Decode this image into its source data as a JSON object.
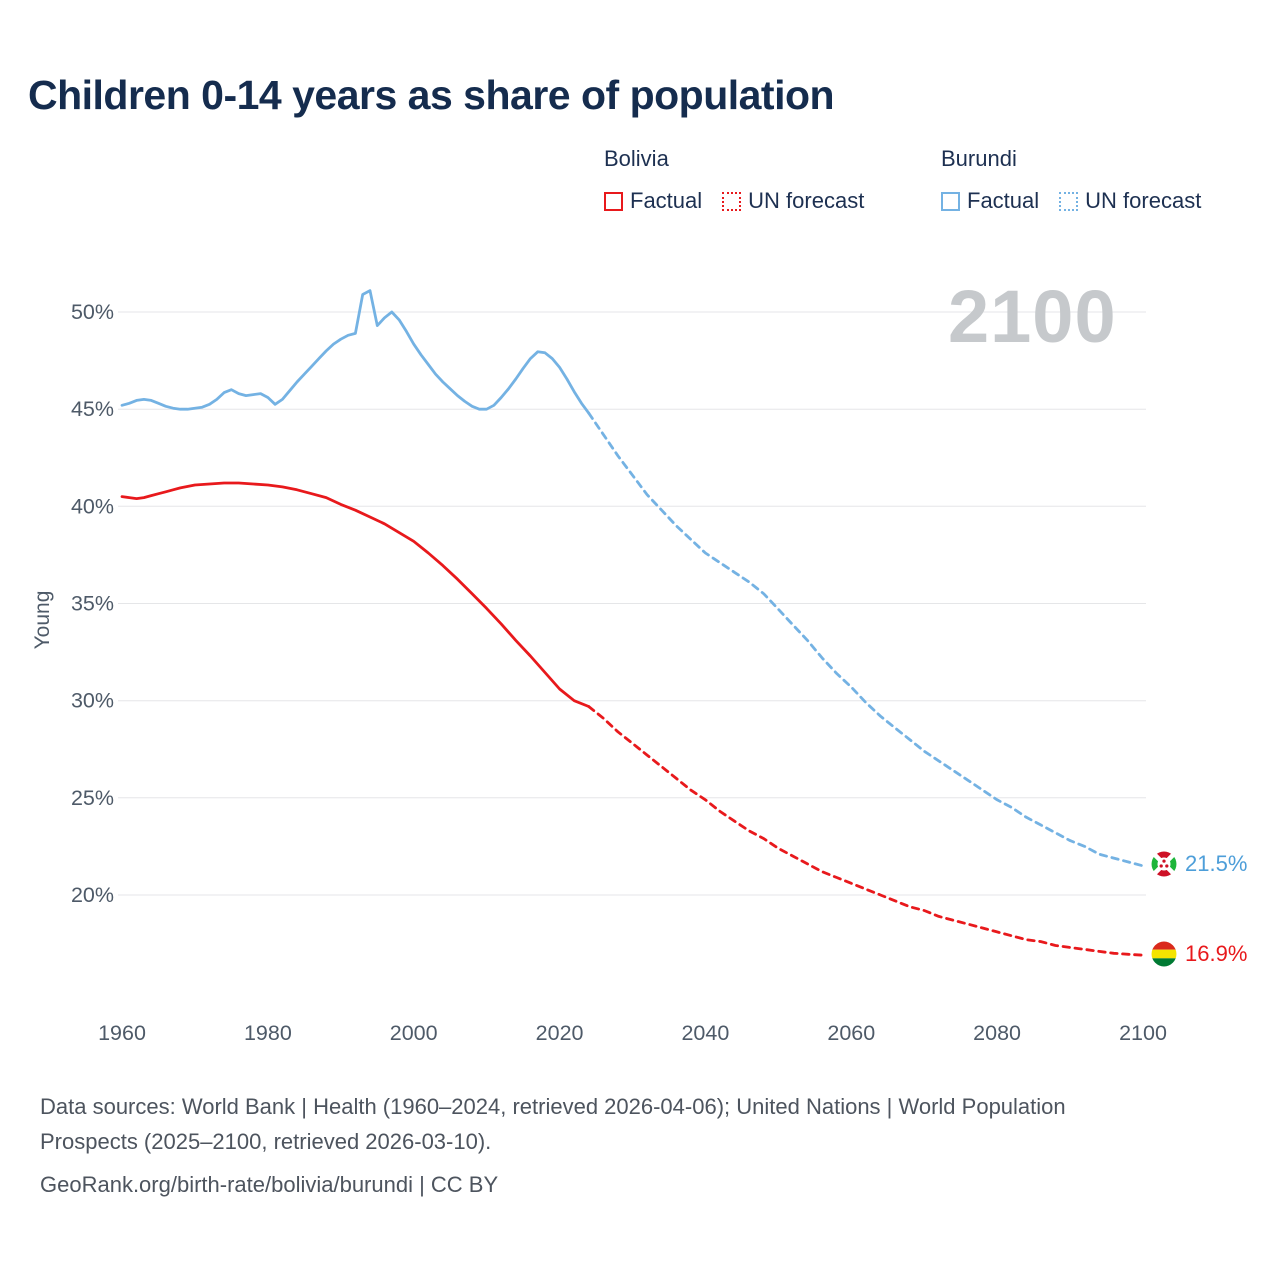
{
  "header": {
    "title": "Children 0-14 years as share of population"
  },
  "legend": {
    "groups": [
      {
        "name": "Bolivia",
        "color": "#e8191c",
        "items": [
          {
            "label": "Factual",
            "style": "solid"
          },
          {
            "label": "UN forecast",
            "style": "dashed"
          }
        ]
      },
      {
        "name": "Burundi",
        "color": "#74b2e3",
        "items": [
          {
            "label": "Factual",
            "style": "solid"
          },
          {
            "label": "UN forecast",
            "style": "dashed"
          }
        ]
      }
    ]
  },
  "chart_data": {
    "type": "line",
    "title": "Children 0-14 years as share of population",
    "ylabel": "Young",
    "xlabel": "",
    "watermark": "2100",
    "grid": "horizontal",
    "legend_position": "top-right",
    "xlim": [
      1960,
      2100
    ],
    "ylim": [
      16,
      52
    ],
    "x_ticks": [
      1960,
      1980,
      2000,
      2020,
      2040,
      2060,
      2080,
      2100
    ],
    "y_ticks": [
      20,
      25,
      30,
      35,
      40,
      45,
      50
    ],
    "y_tick_suffix": "%",
    "series": [
      {
        "id": "bolivia-factual",
        "name": "Bolivia Factual",
        "color": "#e8191c",
        "style": "solid",
        "points": [
          [
            1960,
            40.5
          ],
          [
            1961,
            40.45
          ],
          [
            1962,
            40.4
          ],
          [
            1963,
            40.45
          ],
          [
            1964,
            40.55
          ],
          [
            1965,
            40.65
          ],
          [
            1966,
            40.75
          ],
          [
            1967,
            40.85
          ],
          [
            1968,
            40.95
          ],
          [
            1970,
            41.1
          ],
          [
            1972,
            41.15
          ],
          [
            1974,
            41.2
          ],
          [
            1976,
            41.2
          ],
          [
            1978,
            41.15
          ],
          [
            1980,
            41.1
          ],
          [
            1982,
            41.0
          ],
          [
            1984,
            40.85
          ],
          [
            1986,
            40.65
          ],
          [
            1988,
            40.45
          ],
          [
            1990,
            40.1
          ],
          [
            1992,
            39.8
          ],
          [
            1994,
            39.45
          ],
          [
            1996,
            39.1
          ],
          [
            1998,
            38.65
          ],
          [
            2000,
            38.2
          ],
          [
            2002,
            37.6
          ],
          [
            2004,
            36.95
          ],
          [
            2006,
            36.25
          ],
          [
            2008,
            35.5
          ],
          [
            2010,
            34.75
          ],
          [
            2012,
            33.95
          ],
          [
            2014,
            33.1
          ],
          [
            2016,
            32.3
          ],
          [
            2018,
            31.45
          ],
          [
            2020,
            30.6
          ],
          [
            2022,
            30.0
          ],
          [
            2024,
            29.7
          ]
        ]
      },
      {
        "id": "bolivia-forecast",
        "name": "Bolivia UN forecast",
        "color": "#e8191c",
        "style": "dashed",
        "points": [
          [
            2024,
            29.7
          ],
          [
            2026,
            29.1
          ],
          [
            2028,
            28.4
          ],
          [
            2030,
            27.8
          ],
          [
            2032,
            27.2
          ],
          [
            2034,
            26.6
          ],
          [
            2036,
            26.0
          ],
          [
            2038,
            25.4
          ],
          [
            2040,
            24.9
          ],
          [
            2042,
            24.3
          ],
          [
            2044,
            23.8
          ],
          [
            2046,
            23.3
          ],
          [
            2048,
            22.9
          ],
          [
            2050,
            22.4
          ],
          [
            2052,
            22.0
          ],
          [
            2054,
            21.6
          ],
          [
            2056,
            21.2
          ],
          [
            2058,
            20.9
          ],
          [
            2060,
            20.6
          ],
          [
            2062,
            20.3
          ],
          [
            2064,
            20.0
          ],
          [
            2066,
            19.7
          ],
          [
            2068,
            19.4
          ],
          [
            2070,
            19.2
          ],
          [
            2072,
            18.9
          ],
          [
            2074,
            18.7
          ],
          [
            2076,
            18.5
          ],
          [
            2078,
            18.3
          ],
          [
            2080,
            18.1
          ],
          [
            2082,
            17.9
          ],
          [
            2084,
            17.7
          ],
          [
            2086,
            17.6
          ],
          [
            2088,
            17.4
          ],
          [
            2090,
            17.3
          ],
          [
            2092,
            17.2
          ],
          [
            2094,
            17.1
          ],
          [
            2096,
            17.0
          ],
          [
            2098,
            16.95
          ],
          [
            2100,
            16.9
          ]
        ]
      },
      {
        "id": "burundi-factual",
        "name": "Burundi Factual",
        "color": "#74b2e3",
        "style": "solid",
        "points": [
          [
            1960,
            45.2
          ],
          [
            1961,
            45.3
          ],
          [
            1962,
            45.45
          ],
          [
            1963,
            45.5
          ],
          [
            1964,
            45.45
          ],
          [
            1965,
            45.3
          ],
          [
            1966,
            45.15
          ],
          [
            1967,
            45.05
          ],
          [
            1968,
            45.0
          ],
          [
            1969,
            45.0
          ],
          [
            1970,
            45.05
          ],
          [
            1971,
            45.1
          ],
          [
            1972,
            45.25
          ],
          [
            1973,
            45.5
          ],
          [
            1974,
            45.85
          ],
          [
            1975,
            46.0
          ],
          [
            1976,
            45.8
          ],
          [
            1977,
            45.7
          ],
          [
            1978,
            45.75
          ],
          [
            1979,
            45.8
          ],
          [
            1980,
            45.6
          ],
          [
            1981,
            45.25
          ],
          [
            1982,
            45.5
          ],
          [
            1983,
            45.95
          ],
          [
            1984,
            46.4
          ],
          [
            1985,
            46.8
          ],
          [
            1986,
            47.2
          ],
          [
            1987,
            47.6
          ],
          [
            1988,
            48.0
          ],
          [
            1989,
            48.35
          ],
          [
            1990,
            48.6
          ],
          [
            1991,
            48.8
          ],
          [
            1992,
            48.9
          ],
          [
            1993,
            50.9
          ],
          [
            1994,
            51.1
          ],
          [
            1995,
            49.3
          ],
          [
            1996,
            49.7
          ],
          [
            1997,
            50.0
          ],
          [
            1998,
            49.6
          ],
          [
            1999,
            49.0
          ],
          [
            2000,
            48.35
          ],
          [
            2001,
            47.8
          ],
          [
            2002,
            47.3
          ],
          [
            2003,
            46.8
          ],
          [
            2004,
            46.4
          ],
          [
            2005,
            46.05
          ],
          [
            2006,
            45.7
          ],
          [
            2007,
            45.4
          ],
          [
            2008,
            45.15
          ],
          [
            2009,
            45.0
          ],
          [
            2010,
            45.0
          ],
          [
            2011,
            45.2
          ],
          [
            2012,
            45.6
          ],
          [
            2013,
            46.05
          ],
          [
            2014,
            46.55
          ],
          [
            2015,
            47.1
          ],
          [
            2016,
            47.6
          ],
          [
            2017,
            47.95
          ],
          [
            2018,
            47.9
          ],
          [
            2019,
            47.6
          ],
          [
            2020,
            47.15
          ],
          [
            2021,
            46.55
          ],
          [
            2022,
            45.9
          ],
          [
            2023,
            45.3
          ],
          [
            2024,
            44.8
          ]
        ]
      },
      {
        "id": "burundi-forecast",
        "name": "Burundi UN forecast",
        "color": "#74b2e3",
        "style": "dashed",
        "points": [
          [
            2024,
            44.8
          ],
          [
            2026,
            43.7
          ],
          [
            2028,
            42.6
          ],
          [
            2030,
            41.6
          ],
          [
            2032,
            40.6
          ],
          [
            2034,
            39.8
          ],
          [
            2036,
            39.0
          ],
          [
            2038,
            38.3
          ],
          [
            2040,
            37.6
          ],
          [
            2042,
            37.1
          ],
          [
            2044,
            36.6
          ],
          [
            2046,
            36.1
          ],
          [
            2048,
            35.5
          ],
          [
            2050,
            34.7
          ],
          [
            2052,
            33.9
          ],
          [
            2054,
            33.1
          ],
          [
            2056,
            32.2
          ],
          [
            2058,
            31.4
          ],
          [
            2060,
            30.7
          ],
          [
            2062,
            29.9
          ],
          [
            2064,
            29.2
          ],
          [
            2066,
            28.6
          ],
          [
            2068,
            28.0
          ],
          [
            2070,
            27.4
          ],
          [
            2072,
            26.9
          ],
          [
            2074,
            26.4
          ],
          [
            2076,
            25.9
          ],
          [
            2078,
            25.4
          ],
          [
            2080,
            24.9
          ],
          [
            2082,
            24.5
          ],
          [
            2084,
            24.0
          ],
          [
            2086,
            23.6
          ],
          [
            2088,
            23.2
          ],
          [
            2090,
            22.8
          ],
          [
            2092,
            22.5
          ],
          [
            2094,
            22.1
          ],
          [
            2096,
            21.9
          ],
          [
            2098,
            21.7
          ],
          [
            2100,
            21.5
          ]
        ]
      }
    ],
    "end_labels": [
      {
        "country": "Burundi",
        "value": "21.5%",
        "color": "#4d9ed9",
        "flag": "burundi-flag"
      },
      {
        "country": "Bolivia",
        "value": "16.9%",
        "color": "#e8191c",
        "flag": "bolivia-flag"
      }
    ]
  },
  "footer": {
    "sources": "Data sources: World Bank | Health (1960–2024, retrieved 2026-04-06); United Nations | World Population Prospects (2025–2100, retrieved 2026-03-10).",
    "attribution": "GeoRank.org/birth-rate/bolivia/burundi | CC BY"
  }
}
